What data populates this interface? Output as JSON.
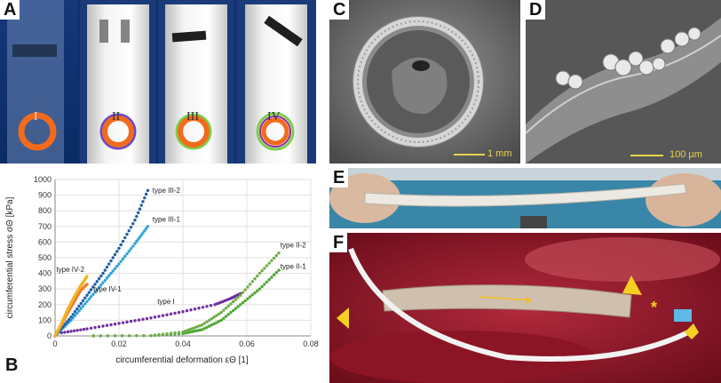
{
  "panels": {
    "A": {
      "label": "A",
      "numerals": [
        "I",
        "II",
        "III",
        "IV"
      ]
    },
    "B": {
      "label": "B"
    },
    "C": {
      "label": "C",
      "scale_text": "1 mm"
    },
    "D": {
      "label": "D",
      "scale_text": "100 µm"
    },
    "E": {
      "label": "E"
    },
    "F": {
      "label": "F",
      "annot": "*"
    }
  },
  "chart_data": {
    "type": "scatter",
    "xlabel": "circumferential deformation εΘ [1]",
    "ylabel": "circumferential stress σΘ [kPa]",
    "xlim": [
      0,
      0.08
    ],
    "ylim": [
      0,
      1000
    ],
    "x_ticks": [
      "0",
      "0.02",
      "0.04",
      "0.06",
      "0.08"
    ],
    "y_ticks": [
      "0",
      "100",
      "200",
      "300",
      "400",
      "500",
      "600",
      "700",
      "800",
      "900",
      "1000"
    ],
    "grid": true,
    "series": [
      {
        "name": "type I",
        "color": "#7030a0",
        "points": [
          [
            0.002,
            20
          ],
          [
            0.01,
            45
          ],
          [
            0.02,
            80
          ],
          [
            0.03,
            115
          ],
          [
            0.04,
            155
          ],
          [
            0.05,
            200
          ],
          [
            0.055,
            240
          ],
          [
            0.058,
            270
          ]
        ]
      },
      {
        "name": "type II-1",
        "color": "#4ea832",
        "points": [
          [
            0.012,
            0
          ],
          [
            0.03,
            2
          ],
          [
            0.04,
            15
          ],
          [
            0.046,
            40
          ],
          [
            0.052,
            100
          ],
          [
            0.058,
            200
          ],
          [
            0.064,
            300
          ],
          [
            0.07,
            420
          ]
        ]
      },
      {
        "name": "type II-2",
        "color": "#70ad47",
        "points": [
          [
            0.012,
            0
          ],
          [
            0.03,
            2
          ],
          [
            0.04,
            25
          ],
          [
            0.046,
            70
          ],
          [
            0.052,
            150
          ],
          [
            0.058,
            260
          ],
          [
            0.064,
            400
          ],
          [
            0.07,
            530
          ]
        ]
      },
      {
        "name": "type III-1",
        "color": "#2fa4d8",
        "points": [
          [
            0,
            0
          ],
          [
            0.005,
            100
          ],
          [
            0.01,
            220
          ],
          [
            0.015,
            340
          ],
          [
            0.02,
            460
          ],
          [
            0.025,
            590
          ],
          [
            0.029,
            700
          ]
        ]
      },
      {
        "name": "type III-2",
        "color": "#1f5fa8",
        "points": [
          [
            0,
            0
          ],
          [
            0.005,
            120
          ],
          [
            0.01,
            260
          ],
          [
            0.015,
            400
          ],
          [
            0.02,
            560
          ],
          [
            0.025,
            740
          ],
          [
            0.029,
            930
          ]
        ]
      },
      {
        "name": "type IV-1",
        "color": "#ed7d31",
        "points": [
          [
            0,
            0
          ],
          [
            0.002,
            70
          ],
          [
            0.004,
            150
          ],
          [
            0.006,
            220
          ],
          [
            0.008,
            290
          ],
          [
            0.01,
            330
          ]
        ]
      },
      {
        "name": "type IV-2",
        "color": "#f4b223",
        "points": [
          [
            0,
            0
          ],
          [
            0.002,
            80
          ],
          [
            0.004,
            170
          ],
          [
            0.006,
            250
          ],
          [
            0.008,
            320
          ],
          [
            0.01,
            380
          ]
        ]
      }
    ],
    "labels": [
      {
        "text": "type III-2",
        "x": 0.0305,
        "y": 915
      },
      {
        "text": "type III-1",
        "x": 0.0305,
        "y": 730
      },
      {
        "text": "type IV-2",
        "x": 0.0004,
        "y": 410
      },
      {
        "text": "type IV-1",
        "x": 0.012,
        "y": 285
      },
      {
        "text": "type I",
        "x": 0.032,
        "y": 205
      },
      {
        "text": "type II-2",
        "x": 0.0705,
        "y": 565
      },
      {
        "text": "type II-1",
        "x": 0.0705,
        "y": 430
      }
    ]
  }
}
